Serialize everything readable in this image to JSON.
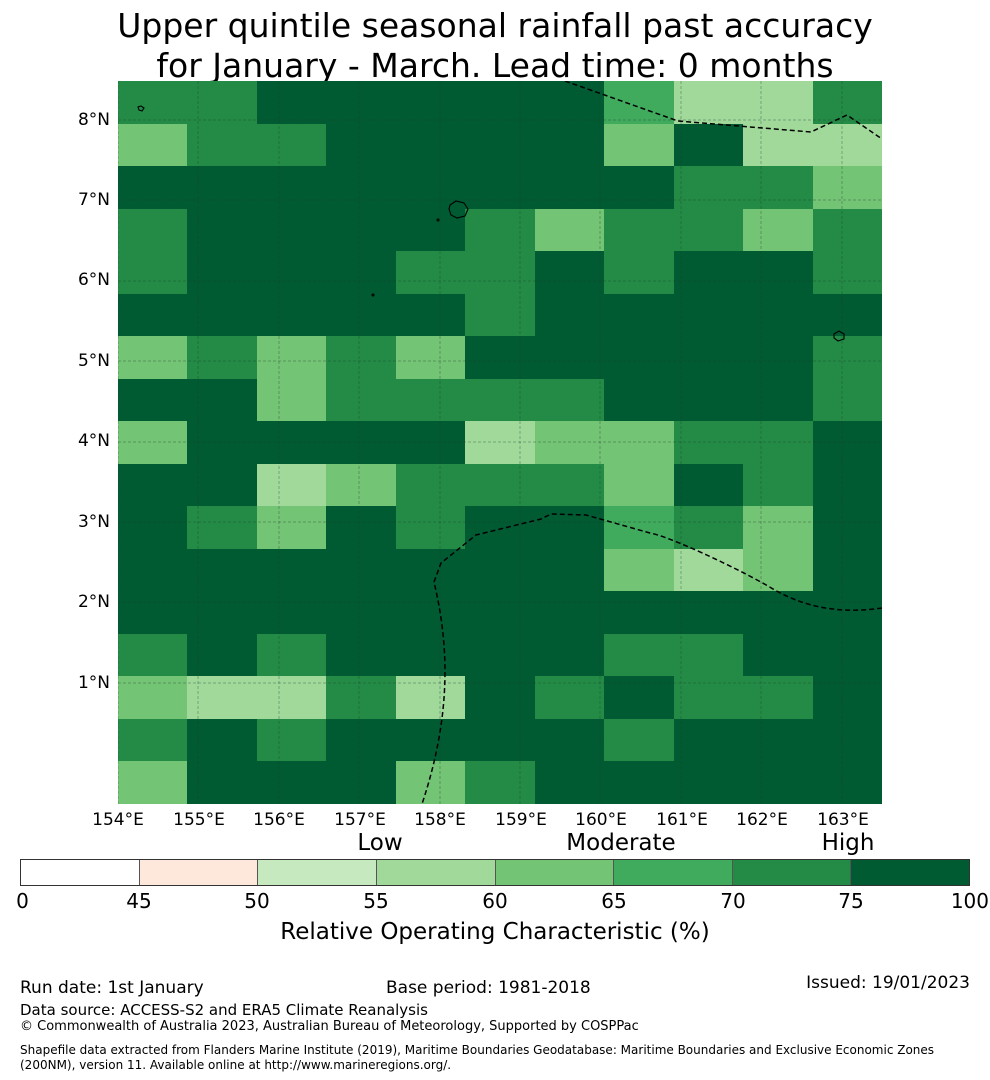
{
  "title": {
    "line1": "Upper quintile seasonal rainfall past accuracy",
    "line2": "for January - March. Lead time: 0 months"
  },
  "map": {
    "lat_labels": [
      "8°N",
      "7°N",
      "6°N",
      "5°N",
      "4°N",
      "3°N",
      "2°N",
      "1°N"
    ],
    "lon_labels": [
      "154°E",
      "155°E",
      "156°E",
      "157°E",
      "158°E",
      "159°E",
      "160°E",
      "161°E",
      "162°E",
      "163°E"
    ],
    "grid_values": [
      [
        70,
        70,
        75,
        75,
        75,
        75,
        80,
        65,
        55,
        55,
        70
      ],
      [
        60,
        70,
        70,
        75,
        75,
        75,
        75,
        60,
        75,
        55,
        55
      ],
      [
        80,
        75,
        75,
        80,
        80,
        75,
        75,
        75,
        70,
        70,
        60
      ],
      [
        70,
        75,
        80,
        80,
        75,
        70,
        60,
        70,
        70,
        60,
        70
      ],
      [
        70,
        75,
        80,
        75,
        70,
        70,
        75,
        70,
        75,
        75,
        70
      ],
      [
        75,
        75,
        75,
        75,
        75,
        70,
        80,
        75,
        75,
        80,
        80
      ],
      [
        60,
        70,
        60,
        70,
        60,
        80,
        80,
        75,
        80,
        80,
        70
      ],
      [
        75,
        75,
        60,
        70,
        70,
        70,
        70,
        80,
        80,
        80,
        70
      ],
      [
        60,
        75,
        80,
        80,
        75,
        55,
        60,
        60,
        70,
        70,
        75
      ],
      [
        75,
        75,
        55,
        60,
        70,
        70,
        70,
        60,
        80,
        70,
        75
      ],
      [
        80,
        70,
        60,
        80,
        70,
        75,
        80,
        65,
        70,
        60,
        80
      ],
      [
        80,
        75,
        80,
        80,
        80,
        80,
        75,
        60,
        55,
        60,
        80
      ],
      [
        75,
        75,
        80,
        80,
        75,
        75,
        80,
        80,
        75,
        80,
        80
      ],
      [
        70,
        75,
        70,
        75,
        80,
        80,
        75,
        70,
        70,
        75,
        80
      ],
      [
        60,
        55,
        55,
        70,
        55,
        75,
        70,
        80,
        70,
        70,
        80
      ],
      [
        70,
        75,
        70,
        75,
        75,
        80,
        75,
        70,
        80,
        80,
        80
      ],
      [
        60,
        80,
        80,
        80,
        60,
        70,
        80,
        80,
        80,
        75,
        80
      ]
    ],
    "coast_features": [
      "Pohnpei",
      "Kosrae",
      "Mokil",
      "Pingelap",
      "Ngatik"
    ],
    "boundary": "EEZ dashed line"
  },
  "legend": {
    "categories": {
      "low": "Low",
      "moderate": "Moderate",
      "high": "High"
    },
    "bins": [
      {
        "from": 0,
        "to": 45,
        "color": "#ffffff"
      },
      {
        "from": 45,
        "to": 50,
        "color": "#fee8dc"
      },
      {
        "from": 50,
        "to": 55,
        "color": "#c7e9c0"
      },
      {
        "from": 55,
        "to": 60,
        "color": "#a1d99b"
      },
      {
        "from": 60,
        "to": 65,
        "color": "#74c476"
      },
      {
        "from": 65,
        "to": 70,
        "color": "#41ab5d"
      },
      {
        "from": 70,
        "to": 75,
        "color": "#238b45"
      },
      {
        "from": 75,
        "to": 100,
        "color": "#005a32"
      }
    ],
    "ticks": [
      "0",
      "45",
      "50",
      "55",
      "60",
      "65",
      "70",
      "75",
      "100"
    ],
    "label": "Relative Operating Characteristic (%)"
  },
  "footer": {
    "run_date": "Run date: 1st January",
    "base_period": "Base period: 1981-2018",
    "issued": "Issued: 19/01/2023",
    "data_source": "Data source: ACCESS-S2 and ERA5 Climate Reanalysis",
    "copyright": "© Commonwealth of Australia 2023, Australian Bureau of Meteorology, Supported by COSPPac",
    "shapefile_line1": "Shapefile data extracted from Flanders Marine Institute (2019), Maritime Boundaries Geodatabase: Maritime Boundaries and Exclusive Economic Zones",
    "shapefile_line2": "(200NM), version 11. Available online at http://www.marineregions.org/."
  }
}
